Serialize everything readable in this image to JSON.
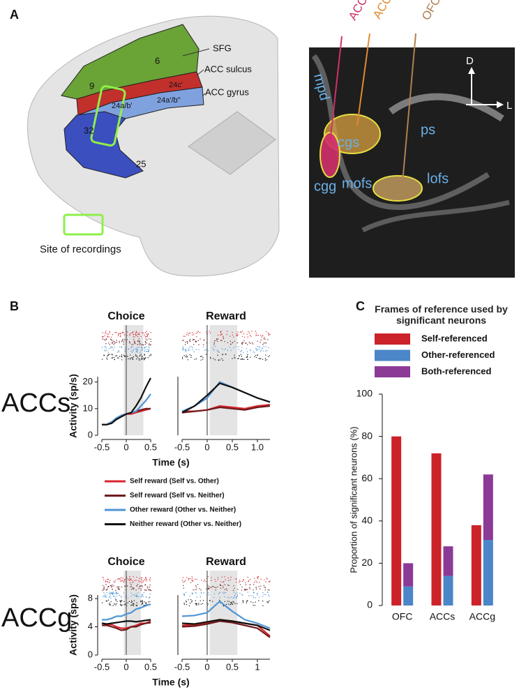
{
  "panels": {
    "a": "A",
    "b": "B",
    "c": "C"
  },
  "brain": {
    "labels": [
      "SFG",
      "ACC sulcus",
      "ACC gyrus"
    ],
    "areas": [
      "6",
      "9",
      "24c'",
      "24a/b'",
      "24a'/b''",
      "32",
      "25"
    ],
    "site": "Site of recordings"
  },
  "mri": {
    "regions": [
      "ACCg",
      "ACCs",
      "OFC"
    ],
    "axes": [
      "D",
      "L"
    ],
    "sulci": [
      "mpd",
      "cgs",
      "ps",
      "cgg",
      "mofs",
      "lofs"
    ]
  },
  "row_labels": [
    "ACCs",
    "ACCg"
  ],
  "panel_b_legend": [
    {
      "name": "Self reward (Self vs. Other)",
      "color": "#d7262c"
    },
    {
      "name": "Self reward (Self vs. Neither)",
      "color": "#6e1a1e"
    },
    {
      "name": "Other reward (Other vs. Neither)",
      "color": "#4d95d6"
    },
    {
      "name": "Neither reward (Other vs. Neither)",
      "color": "#111111"
    }
  ],
  "chart_data": [
    {
      "type": "line",
      "title": "Choice",
      "ylabel": "Activity (sp/s)",
      "xlabel": "Time (s)",
      "x": [
        -0.5,
        -0.4,
        -0.3,
        -0.2,
        -0.1,
        0,
        0.1,
        0.2,
        0.3,
        0.4,
        0.5
      ],
      "series": [
        {
          "color": "#d7262c",
          "values": [
            4,
            4,
            4.5,
            6,
            7,
            8,
            8,
            8.5,
            9,
            9.5,
            10
          ]
        },
        {
          "color": "#6e1a1e",
          "values": [
            4,
            4,
            5,
            6,
            7.5,
            8,
            8.5,
            9,
            9.5,
            10,
            10
          ]
        },
        {
          "color": "#4d95d6",
          "values": [
            4,
            4,
            5,
            6.5,
            7.5,
            8,
            8.5,
            9,
            11,
            13,
            15.5
          ]
        },
        {
          "color": "#111111",
          "values": [
            4,
            4,
            4.5,
            6,
            7,
            8,
            8.5,
            11,
            14,
            18,
            21.5
          ]
        }
      ],
      "xlim": [
        -0.5,
        0.5
      ],
      "ylim": [
        0,
        22
      ],
      "xticks": [
        -0.5,
        0,
        0.5
      ],
      "yticks": [
        0,
        10,
        20
      ],
      "shade": [
        -0.05,
        0.35
      ],
      "vline": 0
    },
    {
      "type": "line",
      "title": "Reward",
      "x": [
        -0.5,
        -0.25,
        0,
        0.25,
        0.5,
        0.75,
        1,
        1.25
      ],
      "series": [
        {
          "color": "#d7262c",
          "values": [
            9,
            9,
            9.5,
            11,
            10.5,
            10,
            11,
            11.5
          ]
        },
        {
          "color": "#6e1a1e",
          "values": [
            8.5,
            9,
            9.5,
            10.5,
            10,
            9.5,
            10.5,
            11
          ]
        },
        {
          "color": "#4d95d6",
          "values": [
            9,
            11,
            14,
            20,
            18,
            16,
            14,
            12.5
          ]
        },
        {
          "color": "#111111",
          "values": [
            8.5,
            11,
            15,
            19.5,
            18,
            16,
            14,
            12.5
          ]
        }
      ],
      "xlim": [
        -0.5,
        1.25
      ],
      "ylim": [
        0,
        22
      ],
      "xticks": [
        -0.5,
        0,
        0.5,
        {
          "value": 1,
          "label": "1.0"
        }
      ],
      "shade": [
        0.05,
        0.6
      ],
      "vline": 0
    },
    {
      "type": "line",
      "title": "Choice",
      "ylabel": "Activity (sps)",
      "xlabel": "Time (s)",
      "x": [
        -0.5,
        -0.4,
        -0.3,
        -0.2,
        -0.1,
        0,
        0.1,
        0.2,
        0.3,
        0.4,
        0.5
      ],
      "series": [
        {
          "color": "#d7262c",
          "values": [
            4.5,
            4.3,
            4.3,
            4,
            3.8,
            3.8,
            4,
            4.2,
            4.5,
            4.5,
            4.8
          ]
        },
        {
          "color": "#6e1a1e",
          "values": [
            4.2,
            4.2,
            4,
            3.8,
            3.5,
            3.6,
            4,
            4,
            4.3,
            4.5,
            4.6
          ]
        },
        {
          "color": "#4d95d6",
          "values": [
            5,
            5,
            5.2,
            5.5,
            5.5,
            5.8,
            6,
            6.5,
            6.7,
            7,
            7.2
          ]
        },
        {
          "color": "#111111",
          "values": [
            4.5,
            4.4,
            4.5,
            4.6,
            4.7,
            4.8,
            4.8,
            4.7,
            4.8,
            4.9,
            5
          ]
        }
      ],
      "xlim": [
        -0.5,
        0.5
      ],
      "ylim": [
        0,
        8.5
      ],
      "xticks": [
        -0.5,
        0,
        0.5
      ],
      "yticks": [
        0,
        4,
        8
      ],
      "shade": [
        -0.05,
        0.3
      ],
      "vline": 0
    },
    {
      "type": "line",
      "title": "Reward",
      "x": [
        -0.5,
        -0.25,
        0,
        0.25,
        0.5,
        0.75,
        1,
        1.25
      ],
      "series": [
        {
          "color": "#d7262c",
          "values": [
            4.2,
            4.3,
            4.6,
            5,
            4.8,
            4.5,
            4.2,
            2.7
          ]
        },
        {
          "color": "#6e1a1e",
          "values": [
            4,
            4.1,
            4.4,
            4.8,
            4.6,
            4.2,
            3.8,
            2.5
          ]
        },
        {
          "color": "#4d95d6",
          "values": [
            5.5,
            5.6,
            6,
            7.6,
            6.2,
            5,
            4.5,
            3.8
          ]
        },
        {
          "color": "#111111",
          "values": [
            4.5,
            4.4,
            4.7,
            5,
            4.8,
            4.5,
            4.2,
            3.5
          ]
        }
      ],
      "xlim": [
        -0.5,
        1.25
      ],
      "ylim": [
        0,
        8.5
      ],
      "xticks": [
        -0.5,
        0,
        0.5,
        1
      ],
      "shade": [
        0.05,
        0.6
      ],
      "vline": 0
    },
    {
      "type": "bar",
      "legend_title": "Frames of reference used by significant neurons",
      "ylabel": "Proportion of significant neurons (%)",
      "categories": [
        "OFC",
        "ACCs",
        "ACCg"
      ],
      "series": [
        {
          "name": "Self-referenced",
          "color": "#cc2229",
          "values": [
            80,
            72,
            38
          ],
          "stack": 0
        },
        {
          "name": "Other-referenced",
          "color": "#4a86c8",
          "values": [
            9,
            14,
            31
          ],
          "stack": 1
        },
        {
          "name": "Both-referenced",
          "color": "#8b3a96",
          "values": [
            11,
            14,
            31
          ],
          "stack": 1
        }
      ],
      "ylim": [
        0,
        100
      ],
      "yticks": [
        0,
        20,
        40,
        60,
        80,
        100
      ]
    }
  ]
}
